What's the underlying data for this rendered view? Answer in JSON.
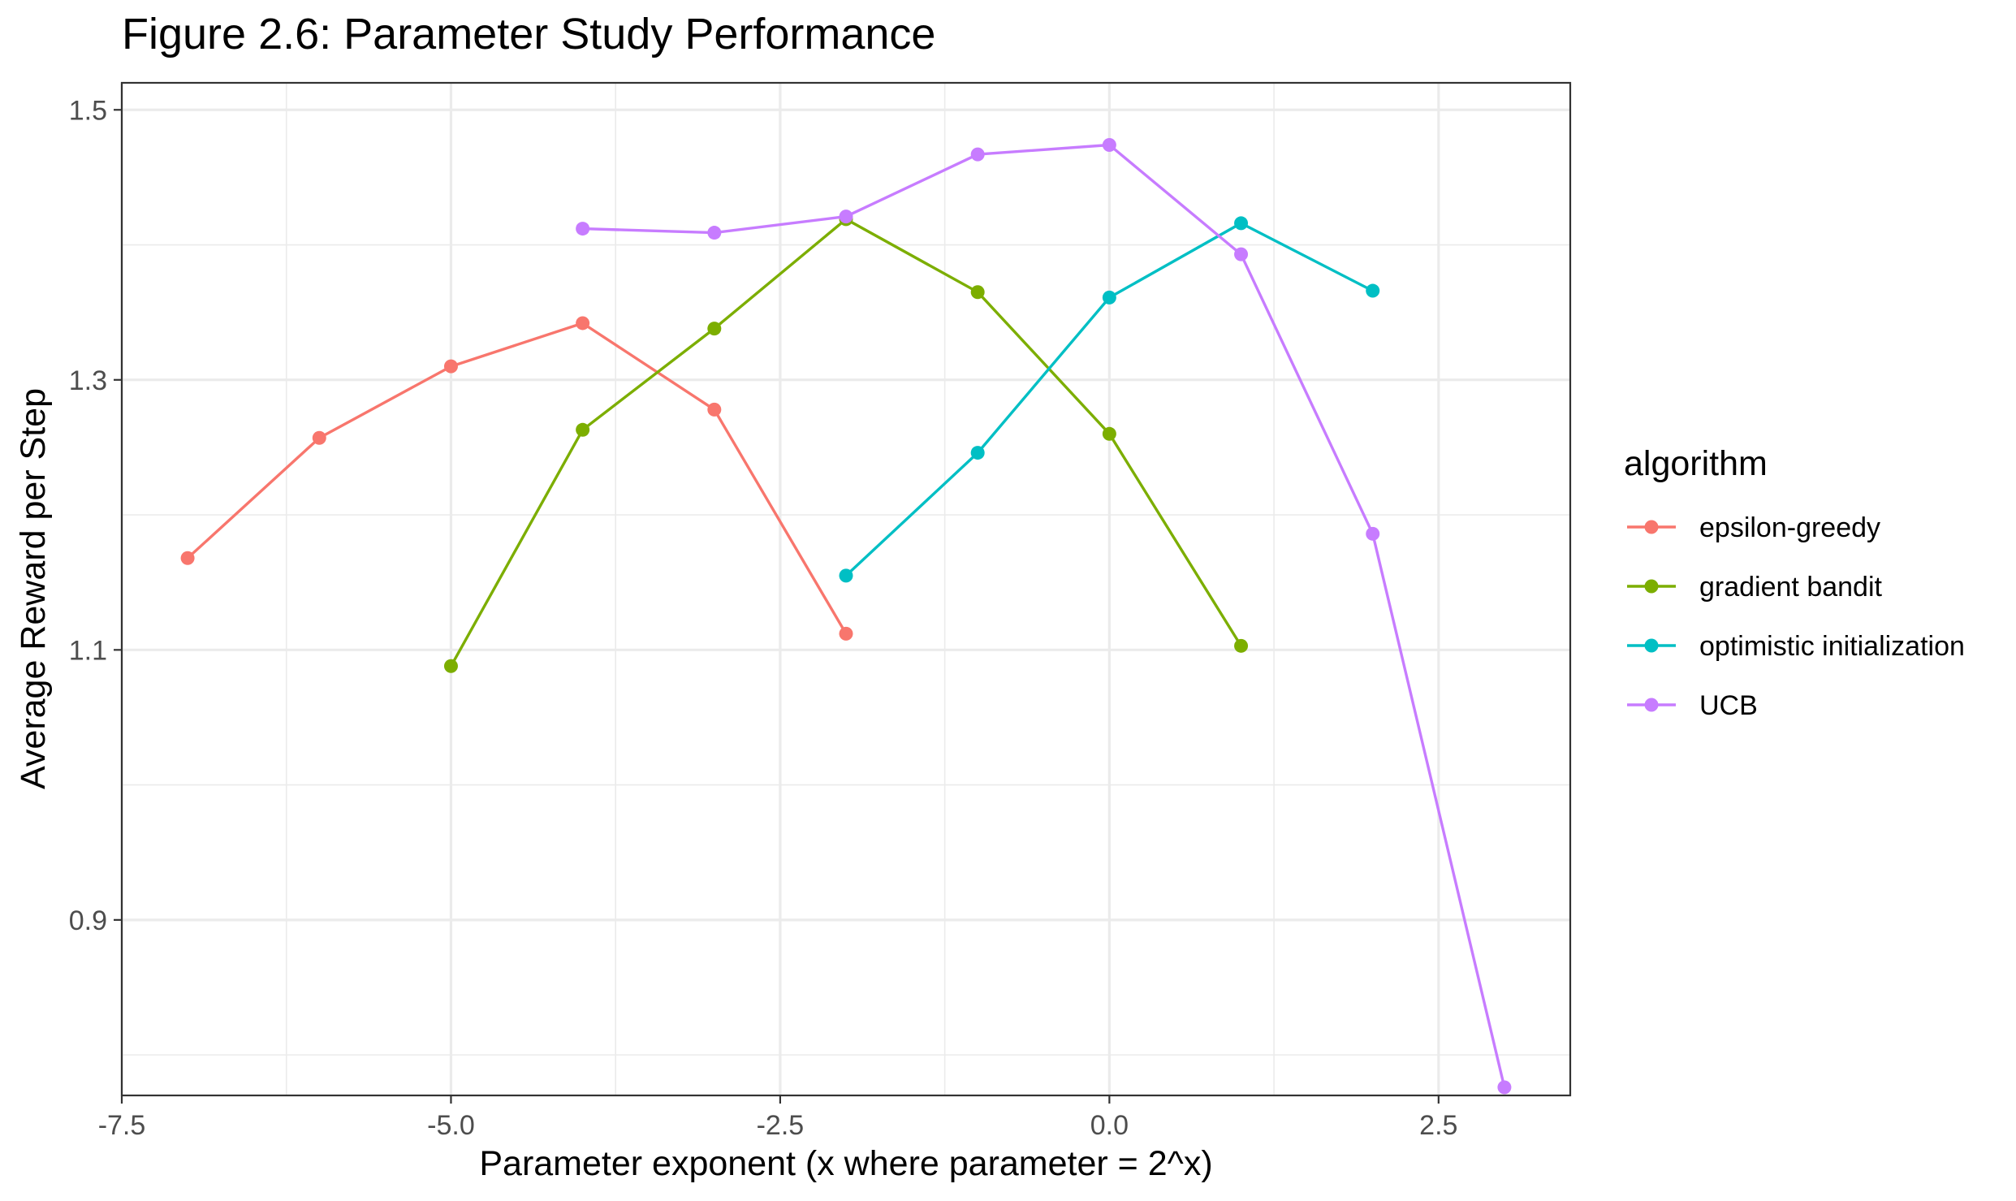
{
  "chart_data": {
    "type": "line",
    "title": "Figure 2.6: Parameter Study Performance",
    "xlabel": "Parameter exponent (x where parameter = 2^x)",
    "ylabel": "Average Reward per Step",
    "xlim": [
      -7.5,
      3.5
    ],
    "ylim": [
      0.77,
      1.52
    ],
    "x_ticks": [
      -7.5,
      -5.0,
      -2.5,
      0.0,
      2.5
    ],
    "x_tick_labels": [
      "-7.5",
      "-5.0",
      "-2.5",
      "0.0",
      "2.5"
    ],
    "y_ticks": [
      0.9,
      1.1,
      1.3,
      1.5
    ],
    "y_tick_labels": [
      "0.9",
      "1.1",
      "1.3",
      "1.5"
    ],
    "grid": true,
    "legend": {
      "title": "algorithm",
      "position": "right"
    },
    "series": [
      {
        "name": "epsilon-greedy",
        "color": "#F8766D",
        "x": [
          -7,
          -6,
          -5,
          -4,
          -3,
          -2
        ],
        "y": [
          1.168,
          1.257,
          1.31,
          1.342,
          1.278,
          1.112
        ]
      },
      {
        "name": "gradient bandit",
        "color": "#7CAE00",
        "x": [
          -5,
          -4,
          -3,
          -2,
          -1,
          0,
          1
        ],
        "y": [
          1.088,
          1.263,
          1.338,
          1.419,
          1.365,
          1.26,
          1.103
        ]
      },
      {
        "name": "optimistic initialization",
        "color": "#00BFC4",
        "x": [
          -2,
          -1,
          0,
          1,
          2
        ],
        "y": [
          1.155,
          1.246,
          1.361,
          1.416,
          1.366
        ]
      },
      {
        "name": "UCB",
        "color": "#C77CFF",
        "x": [
          -4,
          -3,
          -2,
          -1,
          0,
          1,
          2,
          3
        ],
        "y": [
          1.412,
          1.409,
          1.421,
          1.467,
          1.474,
          1.393,
          1.186,
          0.776
        ]
      }
    ]
  }
}
